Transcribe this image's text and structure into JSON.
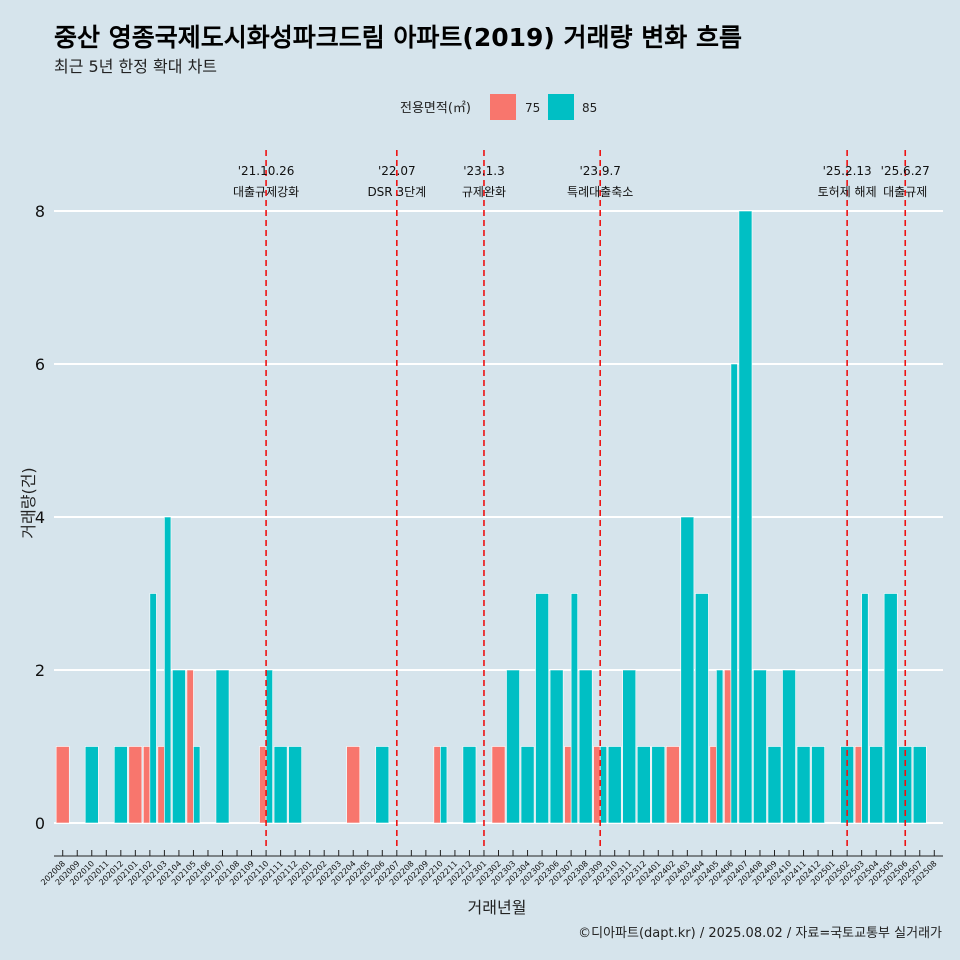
{
  "title": "중산 영종국제도시화성파크드림 아파트(2019) 거래량 변화 흐름",
  "subtitle": "최근 5년 한정 확대 차트",
  "caption": "©디아파트(dapt.kr) / 2025.08.02 / 자료=국토교통부 실거래가",
  "chart_data": {
    "type": "bar",
    "stacked": true,
    "xlabel": "거래년월",
    "ylabel": "거래량(건)",
    "ylim": [
      0,
      8
    ],
    "yticks": [
      0,
      2,
      4,
      6,
      8
    ],
    "legend": {
      "title": "전용면적(㎡)",
      "position": "top"
    },
    "colors": {
      "75": "#f8766d",
      "85": "#00bfc4"
    },
    "x": [
      "202008",
      "202009",
      "202010",
      "202011",
      "202012",
      "202101",
      "202102",
      "202103",
      "202104",
      "202105",
      "202106",
      "202107",
      "202108",
      "202109",
      "202110",
      "202111",
      "202112",
      "202201",
      "202202",
      "202203",
      "202204",
      "202205",
      "202206",
      "202207",
      "202208",
      "202209",
      "202210",
      "202211",
      "202212",
      "202301",
      "202302",
      "202303",
      "202304",
      "202305",
      "202306",
      "202307",
      "202308",
      "202309",
      "202310",
      "202311",
      "202312",
      "202401",
      "202402",
      "202403",
      "202404",
      "202405",
      "202406",
      "202407",
      "202408",
      "202409",
      "202410",
      "202411",
      "202412",
      "202501",
      "202502",
      "202503",
      "202504",
      "202505",
      "202506",
      "202507",
      "202508"
    ],
    "series": [
      {
        "name": "75",
        "values": [
          1,
          0,
          0,
          0,
          0,
          1,
          1,
          1,
          0,
          2,
          0,
          0,
          0,
          0,
          1,
          0,
          0,
          0,
          0,
          0,
          1,
          0,
          0,
          0,
          0,
          0,
          1,
          0,
          0,
          0,
          1,
          0,
          0,
          0,
          0,
          1,
          0,
          1,
          0,
          0,
          0,
          0,
          1,
          0,
          0,
          1,
          2,
          0,
          0,
          0,
          0,
          0,
          0,
          0,
          0,
          1,
          0,
          0,
          0,
          0,
          0
        ]
      },
      {
        "name": "85",
        "values": [
          0,
          0,
          1,
          0,
          1,
          0,
          3,
          4,
          2,
          1,
          0,
          2,
          0,
          0,
          2,
          1,
          1,
          0,
          0,
          0,
          0,
          0,
          1,
          0,
          0,
          0,
          1,
          0,
          1,
          0,
          0,
          2,
          1,
          3,
          2,
          3,
          2,
          1,
          1,
          2,
          1,
          1,
          0,
          4,
          3,
          2,
          6,
          8,
          2,
          1,
          2,
          1,
          1,
          0,
          1,
          3,
          1,
          3,
          1,
          1,
          0
        ]
      }
    ],
    "events": [
      {
        "date": "'21.10.26",
        "label": "대출규제강화",
        "at": "202110"
      },
      {
        "date": "'22.07",
        "label": "DSR 3단계",
        "at": "202207"
      },
      {
        "date": "'23.1.3",
        "label": "규제완화",
        "at": "202301"
      },
      {
        "date": "'23.9.7",
        "label": "특례대출축소",
        "at": "202309"
      },
      {
        "date": "'25.2.13",
        "label": "토허제 해제",
        "at": "202502"
      },
      {
        "date": "'25.6.27",
        "label": "대출규제",
        "at": "202506"
      }
    ]
  }
}
